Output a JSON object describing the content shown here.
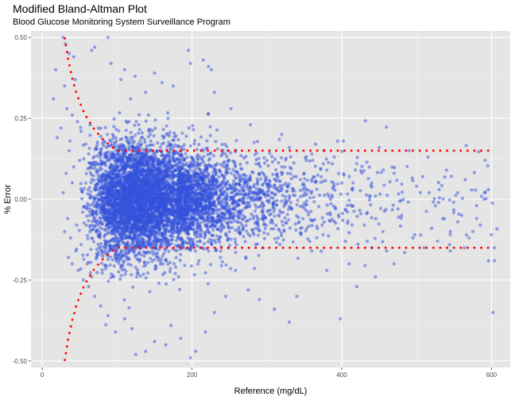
{
  "chart_data": {
    "type": "scatter",
    "title": "Modified Bland-Altman Plot",
    "subtitle": "Blood Glucose Monitoring System Surveillance Program",
    "xlabel": "Reference (mg/dL)",
    "ylabel": "% Error",
    "xlim": [
      -15,
      625
    ],
    "ylim": [
      -0.52,
      0.52
    ],
    "x_ticks": [
      0,
      200,
      400,
      600
    ],
    "x_tick_labels": [
      "0",
      "200",
      "400",
      "600"
    ],
    "y_ticks": [
      -0.5,
      -0.25,
      0,
      0.25,
      0.5
    ],
    "y_tick_labels": [
      "-0.50",
      "-0.25",
      "0.00",
      "0.25",
      "0.50"
    ],
    "grid": true,
    "background": "#e5e5e5",
    "point_color": "#3352db",
    "limit_color": "#ff0000",
    "limit_lines": {
      "upper": [
        [
          30,
          0.5
        ],
        [
          35,
          0.4286
        ],
        [
          40,
          0.375
        ],
        [
          45,
          0.3333
        ],
        [
          50,
          0.3
        ],
        [
          55,
          0.2727
        ],
        [
          60,
          0.25
        ],
        [
          70,
          0.2143
        ],
        [
          80,
          0.1875
        ],
        [
          90,
          0.1667
        ],
        [
          100,
          0.15
        ],
        [
          600,
          0.15
        ]
      ],
      "lower": [
        [
          30,
          -0.5
        ],
        [
          35,
          -0.4286
        ],
        [
          40,
          -0.375
        ],
        [
          45,
          -0.3333
        ],
        [
          50,
          -0.3
        ],
        [
          55,
          -0.2727
        ],
        [
          60,
          -0.25
        ],
        [
          70,
          -0.2143
        ],
        [
          80,
          -0.1875
        ],
        [
          90,
          -0.1667
        ],
        [
          100,
          -0.15
        ],
        [
          600,
          -0.15
        ]
      ]
    },
    "points": [
      [
        28,
        0.5
      ],
      [
        31,
        0.48
      ],
      [
        36,
        0.45
      ],
      [
        42,
        0.44
      ],
      [
        18,
        0.4
      ],
      [
        44,
        0.37
      ],
      [
        30,
        0.35
      ],
      [
        15,
        0.31
      ],
      [
        33,
        0.28
      ],
      [
        40,
        0.26
      ],
      [
        47,
        0.24
      ],
      [
        25,
        0.22
      ],
      [
        20,
        0.19
      ],
      [
        37,
        0.18
      ],
      [
        52,
        0.21
      ],
      [
        58,
        0.17
      ],
      [
        64,
        0.23
      ],
      [
        70,
        0.47
      ],
      [
        66,
        0.46
      ],
      [
        88,
        0.5
      ],
      [
        92,
        0.42
      ],
      [
        110,
        0.4
      ],
      [
        124,
        0.38
      ],
      [
        150,
        0.39
      ],
      [
        195,
        0.46
      ],
      [
        198,
        0.42
      ],
      [
        215,
        0.43
      ],
      [
        222,
        0.41
      ],
      [
        226,
        0.4
      ],
      [
        160,
        0.36
      ],
      [
        175,
        0.35
      ],
      [
        138,
        0.33
      ],
      [
        105,
        0.37
      ],
      [
        118,
        0.31
      ],
      [
        230,
        0.33
      ],
      [
        252,
        0.28
      ],
      [
        278,
        0.23
      ],
      [
        320,
        0.2
      ],
      [
        365,
        0.17
      ],
      [
        402,
        0.18
      ],
      [
        450,
        0.16
      ],
      [
        490,
        0.15
      ],
      [
        515,
        0.13
      ],
      [
        540,
        0.09
      ],
      [
        565,
        0.06
      ],
      [
        508,
        0.07
      ],
      [
        530,
        0.03
      ],
      [
        560,
        -0.05
      ],
      [
        580,
        -0.02
      ],
      [
        600,
        -0.11
      ],
      [
        604,
        -0.15
      ],
      [
        596,
        -0.19
      ],
      [
        604,
        -0.19
      ],
      [
        602,
        -0.35
      ],
      [
        570,
        -0.12
      ],
      [
        545,
        -0.1
      ],
      [
        520,
        -0.09
      ],
      [
        495,
        -0.12
      ],
      [
        470,
        -0.2
      ],
      [
        445,
        -0.24
      ],
      [
        420,
        -0.27
      ],
      [
        398,
        -0.37
      ],
      [
        410,
        -0.2
      ],
      [
        380,
        -0.22
      ],
      [
        360,
        -0.16
      ],
      [
        340,
        -0.3
      ],
      [
        330,
        -0.38
      ],
      [
        310,
        -0.34
      ],
      [
        290,
        -0.31
      ],
      [
        275,
        -0.28
      ],
      [
        258,
        -0.22
      ],
      [
        245,
        -0.3
      ],
      [
        230,
        -0.35
      ],
      [
        218,
        -0.41
      ],
      [
        205,
        -0.47
      ],
      [
        198,
        -0.49
      ],
      [
        185,
        -0.43
      ],
      [
        172,
        -0.39
      ],
      [
        165,
        -0.45
      ],
      [
        150,
        -0.44
      ],
      [
        138,
        -0.47
      ],
      [
        125,
        -0.48
      ],
      [
        120,
        -0.4
      ],
      [
        110,
        -0.37
      ],
      [
        98,
        -0.41
      ],
      [
        88,
        -0.36
      ],
      [
        78,
        -0.33
      ],
      [
        70,
        -0.3
      ],
      [
        62,
        -0.27
      ],
      [
        55,
        -0.25
      ],
      [
        48,
        -0.22
      ],
      [
        40,
        -0.2
      ],
      [
        35,
        -0.18
      ],
      [
        45,
        -0.16
      ],
      [
        52,
        -0.14
      ],
      [
        60,
        -0.2
      ],
      [
        300,
        0.12
      ],
      [
        320,
        0.1
      ],
      [
        350,
        0.08
      ],
      [
        380,
        0.09
      ],
      [
        410,
        0.07
      ],
      [
        440,
        0.05
      ],
      [
        470,
        0.08
      ],
      [
        500,
        0.04
      ],
      [
        525,
        -0.02
      ],
      [
        555,
        -0.07
      ],
      [
        585,
        -0.08
      ],
      [
        480,
        -0.05
      ],
      [
        455,
        -0.1
      ],
      [
        430,
        -0.08
      ],
      [
        405,
        -0.13
      ],
      [
        375,
        -0.11
      ],
      [
        345,
        -0.09
      ],
      [
        315,
        -0.12
      ],
      [
        285,
        -0.14
      ],
      [
        265,
        -0.1
      ],
      [
        270,
        0.05
      ],
      [
        290,
        0.02
      ],
      [
        310,
        -0.03
      ],
      [
        330,
        0.01
      ],
      [
        355,
        -0.04
      ],
      [
        385,
        0.0
      ],
      [
        415,
        -0.02
      ],
      [
        445,
        0.01
      ],
      [
        475,
        -0.03
      ],
      [
        505,
        0.02
      ],
      [
        535,
        -0.06
      ],
      [
        575,
        -0.1
      ],
      [
        590,
        0.0
      ],
      [
        555,
        0.02
      ],
      [
        420,
        0.11
      ],
      [
        390,
        0.13
      ],
      [
        360,
        0.14
      ],
      [
        330,
        0.16
      ],
      [
        440,
        -0.15
      ],
      [
        460,
        -0.16
      ],
      [
        510,
        -0.15
      ],
      [
        545,
        -0.16
      ],
      [
        28,
        0.02
      ],
      [
        32,
        0.08
      ],
      [
        36,
        0.15
      ],
      [
        34,
        -0.06
      ],
      [
        30,
        -0.1
      ],
      [
        38,
        -0.12
      ],
      [
        42,
        0.1
      ],
      [
        46,
        -0.08
      ],
      [
        50,
        0.12
      ],
      [
        54,
        -0.04
      ],
      [
        58,
        0.05
      ],
      [
        62,
        0.14
      ],
      [
        66,
        -0.12
      ],
      [
        72,
        0.16
      ],
      [
        76,
        -0.15
      ],
      [
        82,
        0.18
      ],
      [
        86,
        -0.17
      ],
      [
        94,
        0.2
      ],
      [
        102,
        -0.19
      ],
      [
        116,
        0.24
      ],
      [
        128,
        -0.23
      ],
      [
        142,
        0.26
      ],
      [
        156,
        -0.26
      ],
      [
        168,
        0.25
      ],
      [
        182,
        -0.24
      ],
      [
        196,
        0.22
      ],
      [
        208,
        -0.2
      ],
      [
        220,
        0.18
      ],
      [
        238,
        -0.18
      ],
      [
        248,
        0.15
      ]
    ]
  }
}
